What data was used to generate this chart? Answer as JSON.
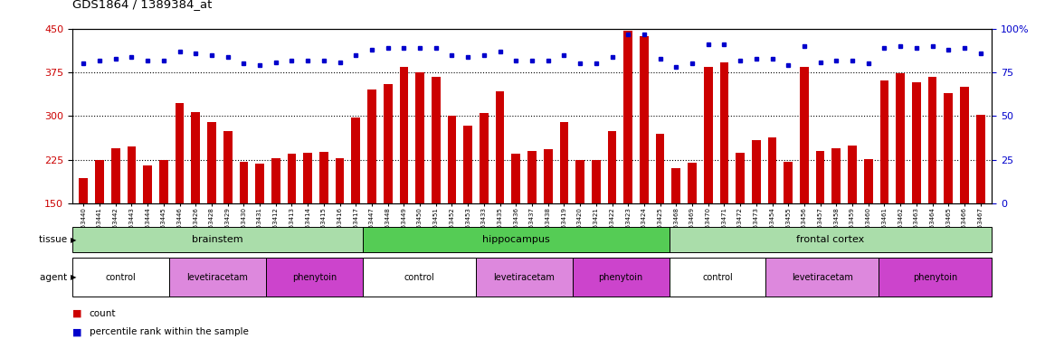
{
  "title": "GDS1864 / 1389384_at",
  "samples": [
    "GSM53440",
    "GSM53441",
    "GSM53442",
    "GSM53443",
    "GSM53444",
    "GSM53445",
    "GSM53446",
    "GSM53426",
    "GSM53428",
    "GSM53429",
    "GSM53430",
    "GSM53431",
    "GSM53412",
    "GSM53413",
    "GSM53414",
    "GSM53415",
    "GSM53416",
    "GSM53417",
    "GSM53447",
    "GSM53448",
    "GSM53449",
    "GSM53450",
    "GSM53451",
    "GSM53452",
    "GSM53453",
    "GSM53433",
    "GSM53435",
    "GSM53436",
    "GSM53437",
    "GSM53438",
    "GSM53419",
    "GSM53420",
    "GSM53421",
    "GSM53422",
    "GSM53423",
    "GSM53424",
    "GSM53425",
    "GSM53468",
    "GSM53469",
    "GSM53470",
    "GSM53471",
    "GSM53472",
    "GSM53473",
    "GSM53454",
    "GSM53455",
    "GSM53456",
    "GSM53457",
    "GSM53458",
    "GSM53459",
    "GSM53460",
    "GSM53461",
    "GSM53462",
    "GSM53463",
    "GSM53464",
    "GSM53465",
    "GSM53466",
    "GSM53467"
  ],
  "counts": [
    193,
    225,
    245,
    248,
    215,
    225,
    323,
    307,
    290,
    275,
    222,
    219,
    228,
    236,
    237,
    238,
    228,
    298,
    346,
    355,
    385,
    375,
    368,
    300,
    283,
    305,
    342,
    236,
    240,
    243,
    290,
    224,
    224,
    275,
    447,
    438,
    270,
    210,
    220,
    385,
    392,
    237,
    258,
    263,
    221,
    385,
    240,
    245,
    250,
    226,
    361,
    373,
    358,
    368,
    340,
    350,
    302
  ],
  "percentiles": [
    80,
    82,
    83,
    84,
    82,
    82,
    87,
    86,
    85,
    84,
    80,
    79,
    81,
    82,
    82,
    82,
    81,
    85,
    88,
    89,
    89,
    89,
    89,
    85,
    84,
    85,
    87,
    82,
    82,
    82,
    85,
    80,
    80,
    84,
    97,
    97,
    83,
    78,
    80,
    91,
    91,
    82,
    83,
    83,
    79,
    90,
    81,
    82,
    82,
    80,
    89,
    90,
    89,
    90,
    88,
    89,
    86
  ],
  "ylim_left": [
    150,
    450
  ],
  "yticks_left": [
    150,
    225,
    300,
    375,
    450
  ],
  "yticks_right_vals": [
    0,
    25,
    50,
    75,
    100
  ],
  "yticks_right_labels": [
    "0",
    "25",
    "50",
    "75",
    "100%"
  ],
  "bar_color": "#cc0000",
  "dot_color": "#0000cc",
  "tissue_groups": [
    {
      "label": "brainstem",
      "start": 0,
      "end": 18,
      "color": "#aaddaa"
    },
    {
      "label": "hippocampus",
      "start": 18,
      "end": 37,
      "color": "#55cc55"
    },
    {
      "label": "frontal cortex",
      "start": 37,
      "end": 57,
      "color": "#aaddaa"
    }
  ],
  "agent_groups": [
    {
      "label": "control",
      "start": 0,
      "end": 6,
      "color": "#ffffff"
    },
    {
      "label": "levetiracetam",
      "start": 6,
      "end": 12,
      "color": "#dd88dd"
    },
    {
      "label": "phenytoin",
      "start": 12,
      "end": 18,
      "color": "#cc44cc"
    },
    {
      "label": "control",
      "start": 18,
      "end": 25,
      "color": "#ffffff"
    },
    {
      "label": "levetiracetam",
      "start": 25,
      "end": 31,
      "color": "#dd88dd"
    },
    {
      "label": "phenytoin",
      "start": 31,
      "end": 37,
      "color": "#cc44cc"
    },
    {
      "label": "control",
      "start": 37,
      "end": 43,
      "color": "#ffffff"
    },
    {
      "label": "levetiracetam",
      "start": 43,
      "end": 50,
      "color": "#dd88dd"
    },
    {
      "label": "phenytoin",
      "start": 50,
      "end": 57,
      "color": "#cc44cc"
    }
  ],
  "legend_items": [
    {
      "color": "#cc0000",
      "label": "count"
    },
    {
      "color": "#0000cc",
      "label": "percentile rank within the sample"
    }
  ]
}
